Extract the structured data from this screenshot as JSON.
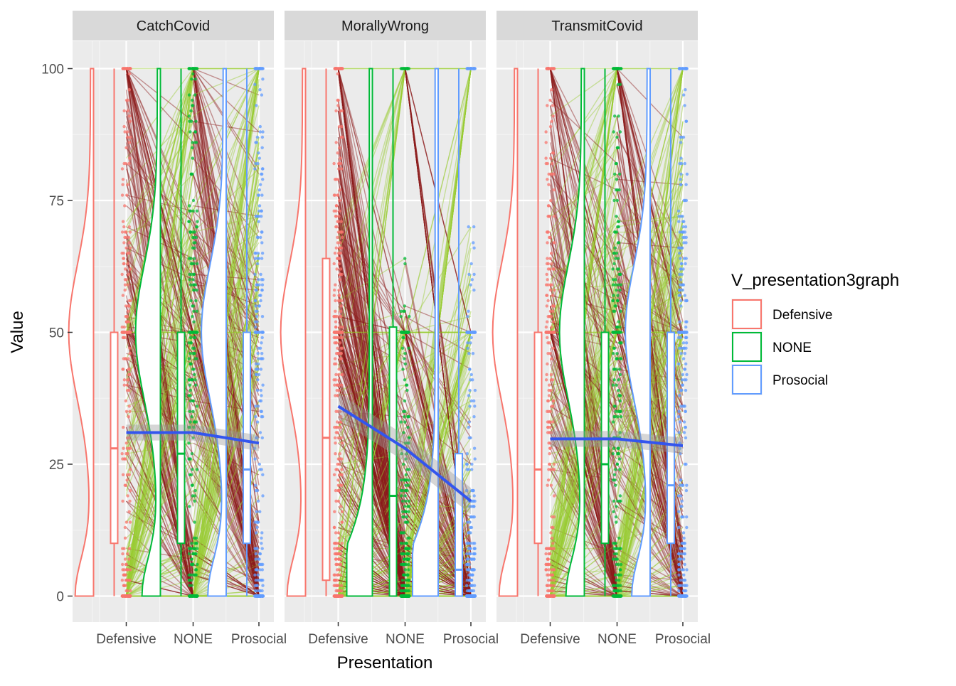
{
  "chart_data": {
    "type": "raincloud",
    "xlabel": "Presentation",
    "ylabel": "Value",
    "ylim": [
      -4.5,
      104.5
    ],
    "yticks": [
      0,
      25,
      50,
      75,
      100
    ],
    "categories": [
      "Defensive",
      "NONE",
      "Prosocial"
    ],
    "grid": true,
    "legend": {
      "title": "V_presentation3graph",
      "position": "right",
      "entries": [
        {
          "label": "Defensive",
          "color": "#F8766D"
        },
        {
          "label": "NONE",
          "color": "#00BA38"
        },
        {
          "label": "Prosocial",
          "color": "#619CFF"
        }
      ]
    },
    "line_colors": {
      "increase": "#9acd32",
      "decrease": "#8b1a1a",
      "trend": "#3355ee"
    },
    "panels": [
      {
        "title": "CatchCovid",
        "boxplots": [
          {
            "group": "Defensive",
            "q1": 10,
            "median": 28,
            "q3": 50,
            "min": 0,
            "max": 100
          },
          {
            "group": "NONE",
            "q1": 10,
            "median": 27,
            "q3": 50,
            "min": 0,
            "max": 100
          },
          {
            "group": "Prosocial",
            "q1": 10,
            "median": 24,
            "q3": 50,
            "min": 0,
            "max": 100
          }
        ],
        "means": [
          31,
          31,
          29
        ],
        "density_peak": [
          50,
          50,
          50
        ]
      },
      {
        "title": "MorallyWrong",
        "boxplots": [
          {
            "group": "Defensive",
            "q1": 3,
            "median": 30,
            "q3": 64,
            "min": 0,
            "max": 100
          },
          {
            "group": "NONE",
            "q1": 0,
            "median": 19,
            "q3": 51,
            "min": 0,
            "max": 100
          },
          {
            "group": "Prosocial",
            "q1": 0,
            "median": 5,
            "q3": 27,
            "min": 0,
            "max": 100
          }
        ],
        "means": [
          36,
          28,
          18
        ],
        "density_peak": [
          50,
          0,
          0
        ]
      },
      {
        "title": "TransmitCovid",
        "boxplots": [
          {
            "group": "Defensive",
            "q1": 10,
            "median": 24,
            "q3": 50,
            "min": 0,
            "max": 100
          },
          {
            "group": "NONE",
            "q1": 10,
            "median": 25,
            "q3": 50,
            "min": 0,
            "max": 100
          },
          {
            "group": "Prosocial",
            "q1": 10,
            "median": 21,
            "q3": 50,
            "min": 0,
            "max": 100
          }
        ],
        "means": [
          29.8,
          29.8,
          28.5
        ],
        "density_peak": [
          50,
          50,
          50
        ]
      }
    ]
  }
}
